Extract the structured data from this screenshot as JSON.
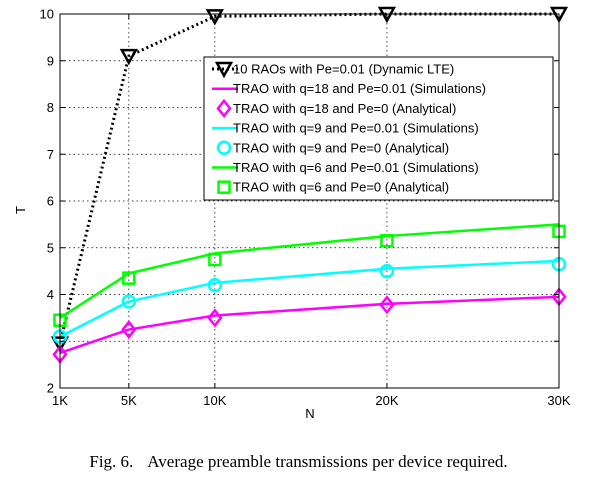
{
  "chart_data": {
    "type": "line",
    "title": "",
    "xlabel": "N",
    "ylabel": "T",
    "x": [
      1000,
      5000,
      10000,
      20000,
      30000
    ],
    "x_tick_labels": [
      "1K",
      "5K",
      "10K",
      "20K",
      "30K"
    ],
    "xlim": [
      1000,
      30000
    ],
    "ylim": [
      2,
      10
    ],
    "y_ticks": [
      2,
      3,
      4,
      5,
      6,
      7,
      8,
      9,
      10
    ],
    "y_tick_labels": [
      "2",
      "",
      "4",
      "5",
      "6",
      "7",
      "8",
      "9",
      "10"
    ],
    "grid": true,
    "legend_position": "top-right",
    "series": [
      {
        "name": "10 RAOs with Pe=0.01 (Dynamic LTE)",
        "color": "#000000",
        "line": "dotted",
        "marker": "triangle-down",
        "values": [
          2.95,
          9.1,
          9.95,
          10.0,
          10.0
        ]
      },
      {
        "name": "TRAO with q=18 and Pe=0.01 (Simulations)",
        "color": "#ff00ff",
        "line": "solid",
        "marker": "none",
        "values": [
          2.75,
          3.25,
          3.55,
          3.8,
          3.95
        ]
      },
      {
        "name": "TRAO with q=18 and Pe=0 (Analytical)",
        "color": "#ff00ff",
        "line": "none",
        "marker": "diamond",
        "values": [
          2.72,
          3.25,
          3.5,
          3.78,
          3.95
        ]
      },
      {
        "name": "TRAO with q=9 and Pe=0.01 (Simulations)",
        "color": "#00ffff",
        "line": "solid",
        "marker": "none",
        "values": [
          3.1,
          3.85,
          4.25,
          4.55,
          4.72
        ]
      },
      {
        "name": "TRAO with q=9 and Pe=0 (Analytical)",
        "color": "#00ffff",
        "line": "none",
        "marker": "circle",
        "values": [
          3.1,
          3.85,
          4.2,
          4.5,
          4.65
        ]
      },
      {
        "name": "TRAO with q=6 and Pe=0.01 (Simulations)",
        "color": "#00ff00",
        "line": "solid",
        "marker": "none",
        "values": [
          3.5,
          4.45,
          4.88,
          5.25,
          5.5
        ]
      },
      {
        "name": "TRAO with q=6 and Pe=0 (Analytical)",
        "color": "#00ff00",
        "line": "none",
        "marker": "square",
        "values": [
          3.45,
          4.35,
          4.75,
          5.15,
          5.35
        ]
      }
    ]
  },
  "caption": {
    "label": "Fig. 6.",
    "text": "Average preamble transmissions per device required."
  }
}
